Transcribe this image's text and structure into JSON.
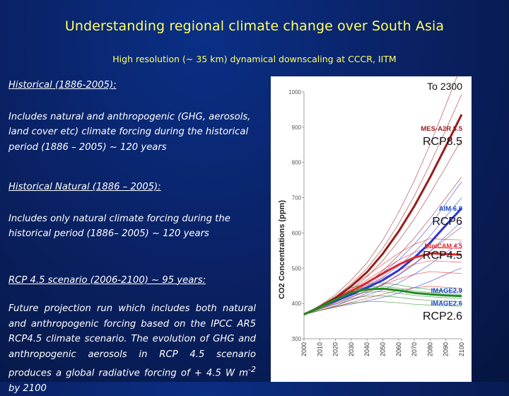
{
  "slide": {
    "title": "Understanding regional climate change over South Asia",
    "subtitle": "High resolution (~ 35 km) dynamical downscaling  at CCCR, IITM"
  },
  "sections": [
    {
      "heading": "Historical  (1886-2005):",
      "body": "Includes natural  and  anthropogenic (GHG, aerosols,  land cover etc) climate forcing during the historical period (1886 – 2005)  ~ 120 years"
    },
    {
      "heading": "Historical Natural (1886 – 2005):",
      "body": "Includes only natural climate forcing during the historical  period (1886– 2005)  ~ 120 years"
    },
    {
      "heading": "RCP 4.5 scenario (2006-2100) ~ 95 years:",
      "body_pre": "Future  projection  run  which  includes  both natural and anthropogenic forcing based on the IPCC AR5 RCP4.5 climate scenario. The evolution of GHG and anthropogenic aerosols in RCP 4.5 scenario produces a global radiative forcing of + 4.5 W m",
      "body_sup": "-2",
      "body_post": " by 2100"
    }
  ],
  "chart_data": {
    "type": "line",
    "title": "To 2300",
    "xlabel": "",
    "ylabel": "CO2 Concentrations (ppm)",
    "xlim": [
      2000,
      2100
    ],
    "ylim": [
      300,
      1000
    ],
    "x_ticks": [
      "2000",
      "2010",
      "2020",
      "2030",
      "2040",
      "2050",
      "2060",
      "2070",
      "2080",
      "2090",
      "2100"
    ],
    "y_ticks": [
      "300",
      "400",
      "500",
      "600",
      "700",
      "800",
      "900",
      "1000"
    ],
    "x": [
      2000,
      2010,
      2020,
      2030,
      2040,
      2050,
      2060,
      2070,
      2080,
      2090,
      2100
    ],
    "series": [
      {
        "name": "RCP8.5",
        "model": "MES-A2R 8.5",
        "color": "#9b1c1c",
        "values": [
          369,
          390,
          415,
          449,
          489,
          541,
          604,
          676,
          758,
          846,
          936
        ]
      },
      {
        "name": "RCP6",
        "model": "AIM 6.0",
        "color": "#2d34d6",
        "values": [
          369,
          389,
          408,
          425,
          445,
          466,
          494,
          530,
          572,
          622,
          670
        ]
      },
      {
        "name": "RCP4.5",
        "model": "MiniCAM 4.5",
        "color": "#e02828",
        "values": [
          369,
          389,
          411,
          435,
          459,
          485,
          510,
          530,
          542,
          540,
          538
        ]
      },
      {
        "name": "RCP2.6",
        "model": "IMAGE 2.6",
        "color": "#1f8a1f",
        "values": [
          369,
          389,
          411,
          431,
          440,
          442,
          437,
          430,
          426,
          423,
          421
        ]
      }
    ],
    "model_labels": {
      "mes": "MES-A2R 8.5",
      "aim": "AIM 6.0",
      "minicam": "MiniCAM 4.5",
      "image29": "IMAGE2.9",
      "image26": "IMAGE2.6"
    },
    "rcp_labels": {
      "r85": "RCP8.5",
      "r6": "RCP6",
      "r45": "RCP4.5",
      "r26": "RCP2.6"
    },
    "colors": {
      "rcp85": "#9b1c1c",
      "rcp6": "#2d34d6",
      "rcp45": "#e02828",
      "rcp26": "#1f8a1f",
      "label_blue": "#1a46c8"
    }
  }
}
